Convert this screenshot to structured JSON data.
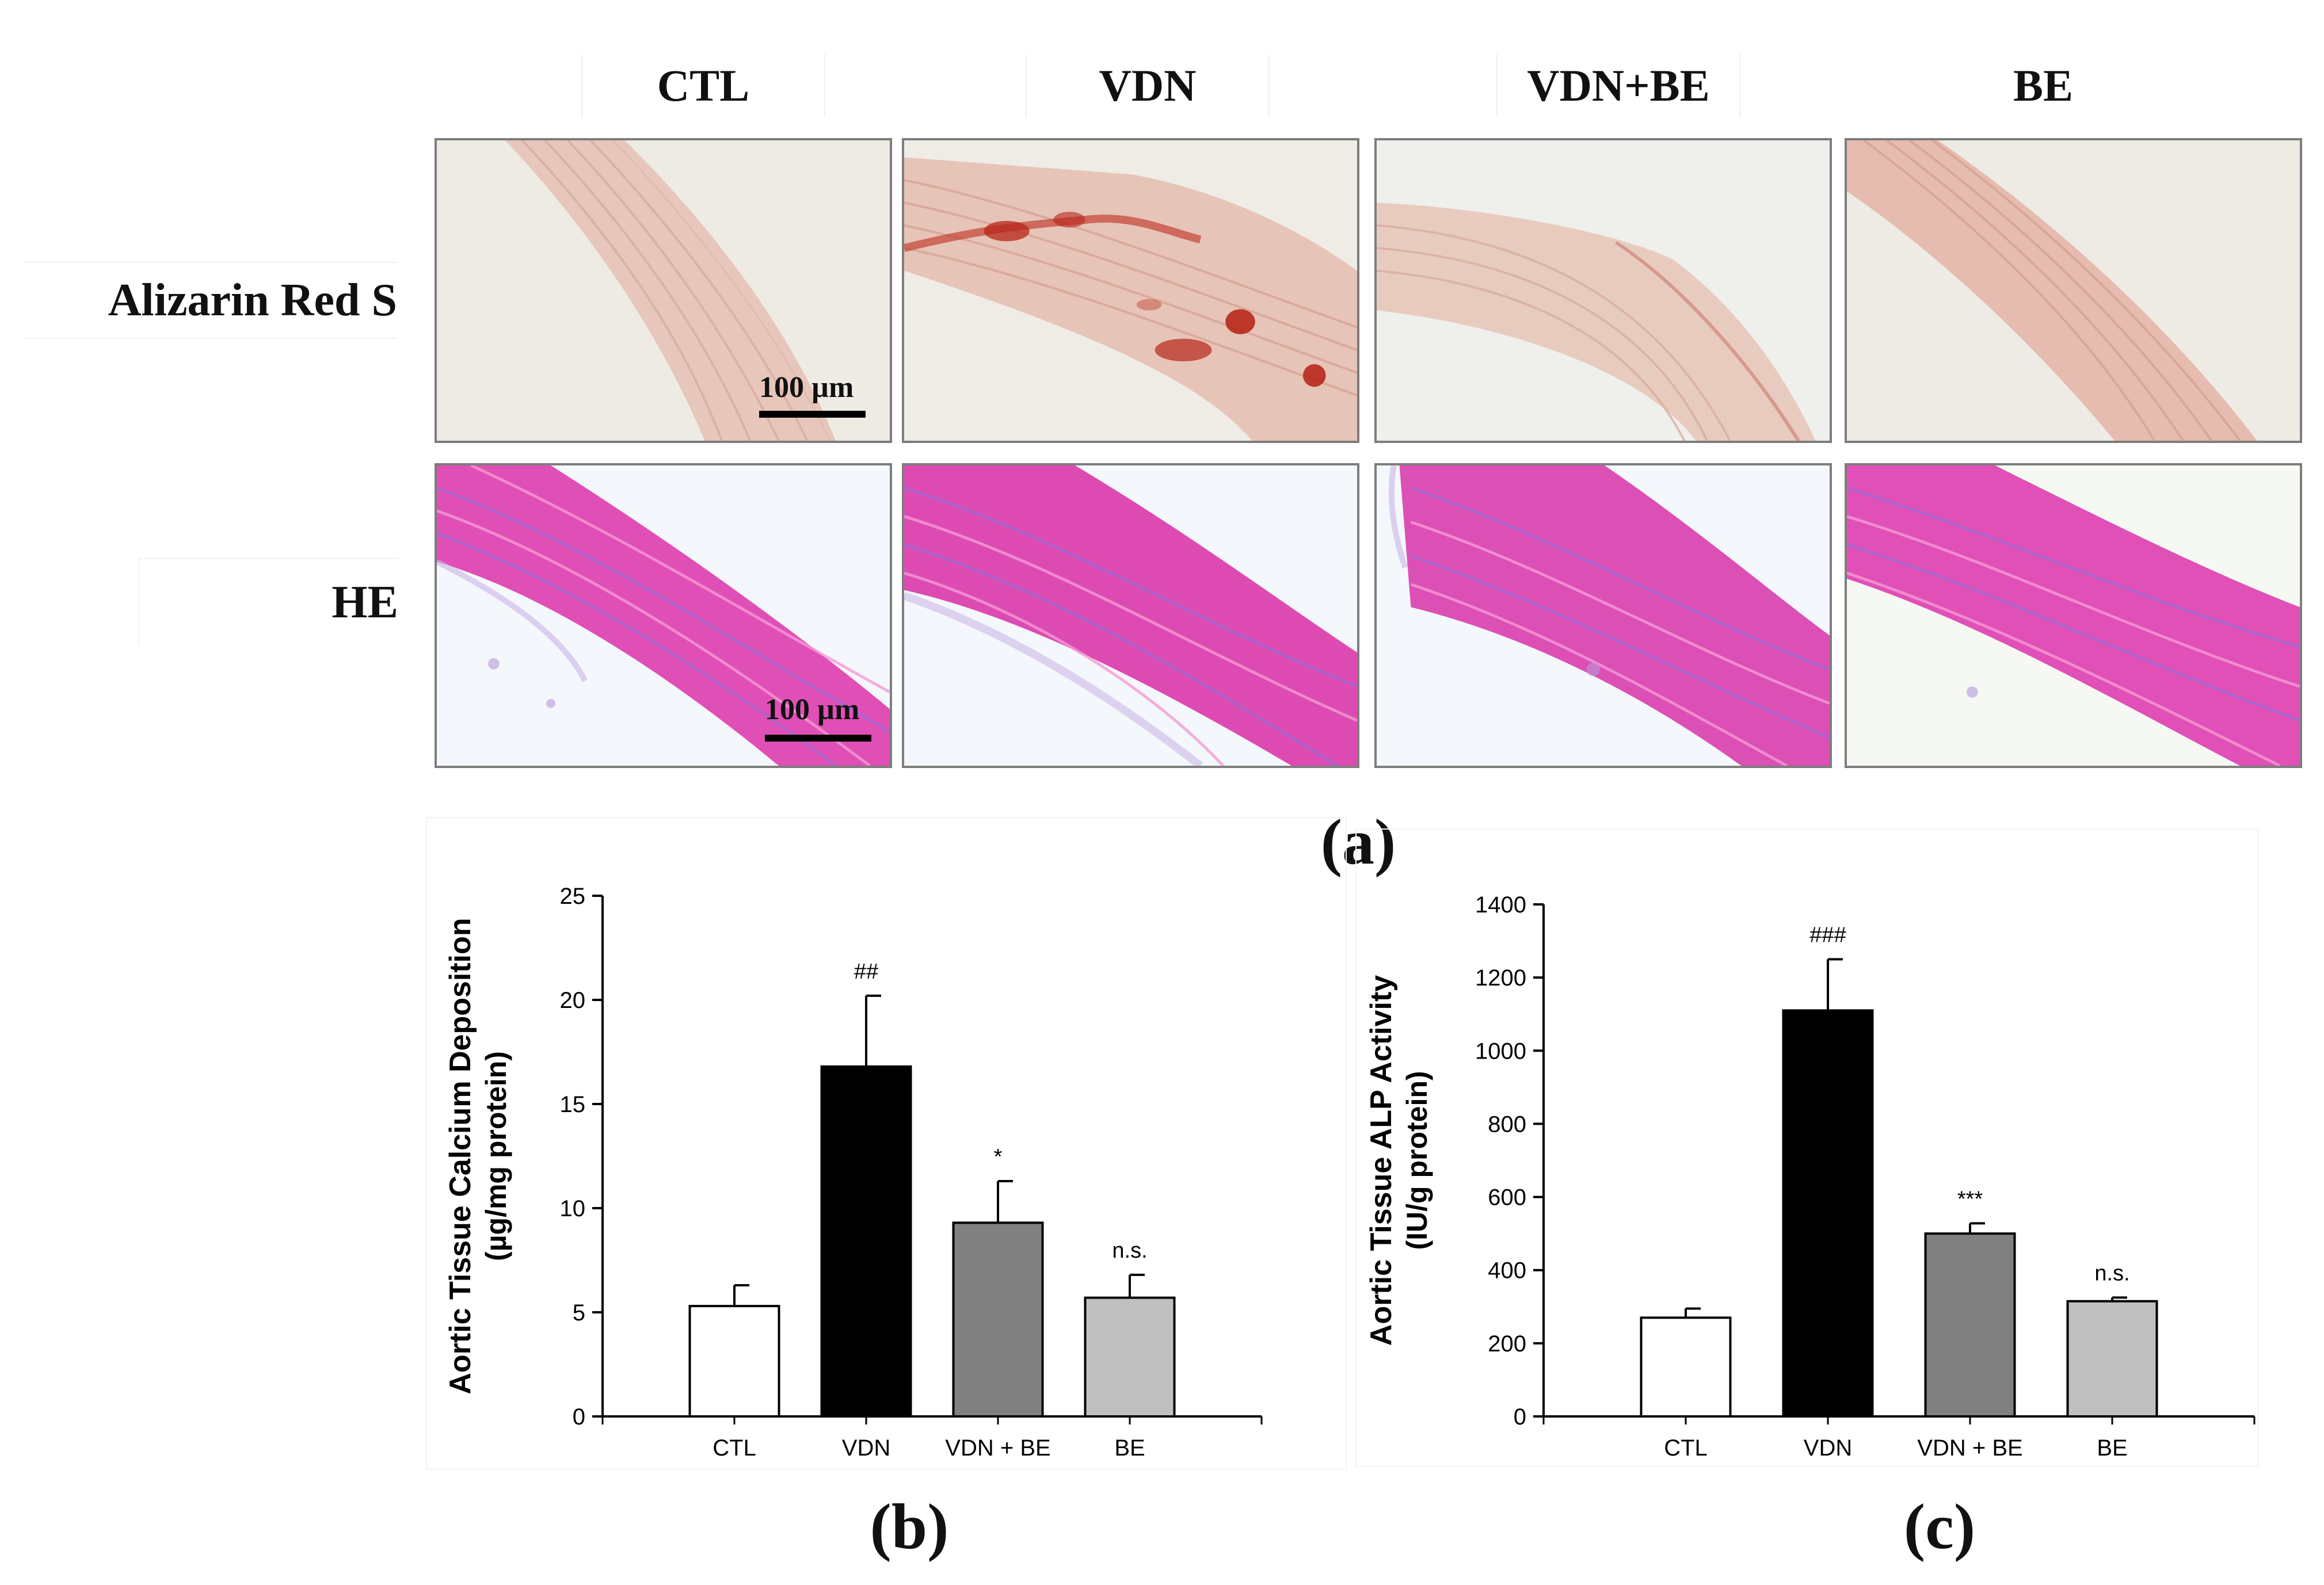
{
  "panel_a": {
    "label": "(a)",
    "columns": [
      "CTL",
      "VDN",
      "VDN+BE",
      "BE"
    ],
    "rows": [
      "Alizarin Red S",
      "HE"
    ],
    "scale_bar": "100 µm"
  },
  "panel_b": {
    "label": "(b)"
  },
  "panel_c": {
    "label": "(c)"
  },
  "colors": {
    "CTL": "#ffffff",
    "VDN": "#000000",
    "VDN + BE": "#808080",
    "BE": "#c0c0c0",
    "alizarin_bg": "#eeeae2",
    "alizarin_band": "#d9a898",
    "he_bg": "#f3f6fa",
    "he_band": "#e04fb6"
  },
  "chart_data": [
    {
      "type": "bar",
      "title": "",
      "xlabel": "",
      "ylabel": "Aortic Tissue Calcium Deposition",
      "ylabel2": "(µg/mg protein)",
      "categories": [
        "CTL",
        "VDN",
        "VDN + BE",
        "BE"
      ],
      "values": [
        5.3,
        16.8,
        9.3,
        5.7
      ],
      "errors": [
        1.0,
        3.4,
        2.0,
        1.1
      ],
      "annotations": [
        "",
        "##",
        "*",
        "n.s."
      ],
      "ylim": [
        0,
        25
      ],
      "yticks": [
        0,
        5,
        10,
        15,
        20,
        25
      ]
    },
    {
      "type": "bar",
      "title": "",
      "xlabel": "",
      "ylabel": "Aortic Tissue ALP Activity",
      "ylabel2": "(IU/g protein)",
      "categories": [
        "CTL",
        "VDN",
        "VDN + BE",
        "BE"
      ],
      "values": [
        270,
        1110,
        500,
        315
      ],
      "errors": [
        25,
        140,
        28,
        10
      ],
      "annotations": [
        "",
        "###",
        "***",
        "n.s."
      ],
      "ylim": [
        0,
        1400
      ],
      "yticks": [
        0,
        200,
        400,
        600,
        800,
        1000,
        1200,
        1400
      ]
    }
  ]
}
